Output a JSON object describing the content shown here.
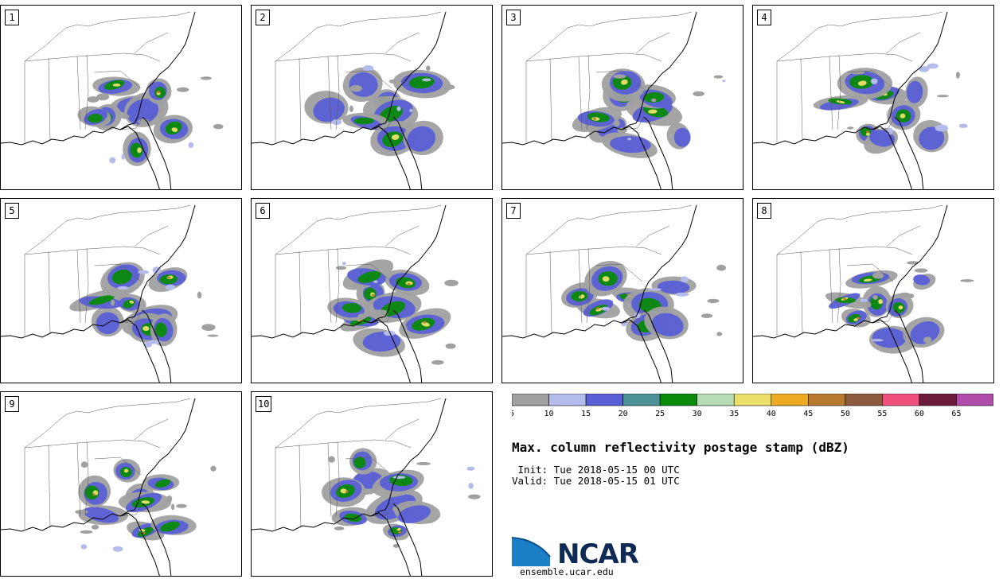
{
  "panels": [
    {
      "label": "1"
    },
    {
      "label": "2"
    },
    {
      "label": "3"
    },
    {
      "label": "4"
    },
    {
      "label": "5"
    },
    {
      "label": "6"
    },
    {
      "label": "7"
    },
    {
      "label": "8"
    },
    {
      "label": "9"
    },
    {
      "label": "10"
    }
  ],
  "colorbar": {
    "ticks": [
      "5",
      "10",
      "15",
      "20",
      "25",
      "30",
      "35",
      "40",
      "45",
      "50",
      "55",
      "60",
      "65"
    ],
    "colors": [
      "#a0a0a0",
      "#b4bcec",
      "#5a5fd6",
      "#4a9296",
      "#0a8a0a",
      "#b6dcb6",
      "#ece06a",
      "#eeaa22",
      "#b87a30",
      "#8c5a3c",
      "#f0507c",
      "#6e1a3a",
      "#b04caa"
    ]
  },
  "title": "Max. column reflectivity postage stamp (dBZ)",
  "init_line": " Init: Tue 2018-05-15 00 UTC",
  "valid_line": "Valid: Tue 2018-05-15 01 UTC",
  "logo_text": "NCAR",
  "site": "ensemble.ucar.edu"
}
